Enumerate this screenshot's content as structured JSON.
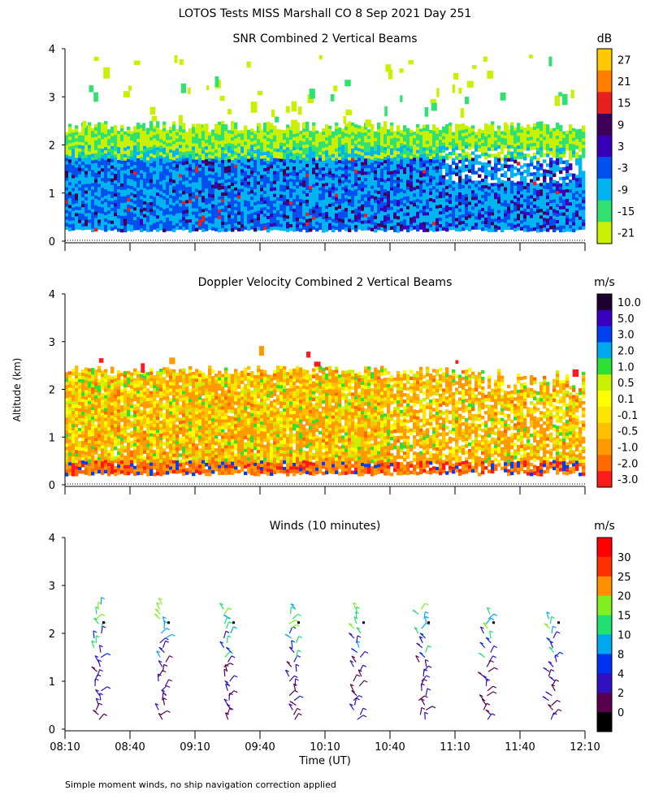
{
  "title": "LOTOS Tests MISS Marshall CO   8 Sep 2021 Day 251",
  "footnote": "Simple moment winds, no ship navigation correction applied",
  "shared_axes": {
    "ylabel": "Altitude (km)",
    "xlabel": "Time (UT)",
    "x_tick_labels": [
      "08:10",
      "08:40",
      "09:10",
      "09:40",
      "10:10",
      "10:40",
      "11:10",
      "11:40",
      "12:10"
    ],
    "y_tick_labels": [
      "0",
      "1",
      "2",
      "3",
      "4"
    ]
  },
  "chart_data": [
    {
      "type": "heatmap",
      "title": "SNR Combined 2 Vertical Beams",
      "xlabel": "Time (UT)",
      "ylabel": "Altitude (km)",
      "xlim": [
        "08:10",
        "12:10"
      ],
      "ylim": [
        0,
        4
      ],
      "data_altitude_range_km": [
        0.25,
        2.5
      ],
      "colorbar": {
        "unit": "dB",
        "levels": [
          -21,
          -15,
          -9,
          -3,
          3,
          9,
          15,
          21,
          27
        ],
        "colors": [
          "#c8f000",
          "#30e070",
          "#00b4f0",
          "#0050f0",
          "#3a00b8",
          "#40005a",
          "#e82020",
          "#ff8000",
          "#ffc800"
        ]
      }
    },
    {
      "type": "heatmap",
      "title": "Doppler Velocity Combined 2 Vertical Beams",
      "xlabel": "Time (UT)",
      "ylabel": "Altitude (km)",
      "xlim": [
        "08:10",
        "12:10"
      ],
      "ylim": [
        0,
        4
      ],
      "data_altitude_range_km": [
        0.25,
        2.5
      ],
      "colorbar": {
        "unit": "m/s",
        "levels": [
          "-3.0",
          "-2.0",
          "-1.0",
          "-0.5",
          "-0.1",
          "0.1",
          "0.5",
          "1.0",
          "2.0",
          "3.0",
          "5.0",
          "10.0"
        ],
        "colors": [
          "#ff1a1a",
          "#ff6a00",
          "#ff9a00",
          "#ffc000",
          "#ffe600",
          "#ffff00",
          "#c8f000",
          "#30e030",
          "#00a8f0",
          "#0040f0",
          "#3a00c0",
          "#200030"
        ]
      }
    },
    {
      "type": "scatter",
      "title": "Winds (10 minutes)",
      "xlabel": "Time (UT)",
      "ylabel": "Altitude (km)",
      "xlim": [
        "08:10",
        "12:10"
      ],
      "ylim": [
        0,
        4
      ],
      "profile_times": [
        "08:25",
        "08:55",
        "09:25",
        "09:55",
        "10:25",
        "10:55",
        "11:25",
        "11:55"
      ],
      "altitude_top_km": [
        2.7,
        2.65,
        2.6,
        2.55,
        2.55,
        2.55,
        2.45,
        2.4
      ],
      "colorbar": {
        "unit": "m/s",
        "levels": [
          0,
          2,
          4,
          8,
          10,
          15,
          20,
          25,
          30
        ],
        "colors": [
          "#000000",
          "#5a0050",
          "#3010c0",
          "#0030f0",
          "#00a8f0",
          "#20e070",
          "#80f020",
          "#ff9000",
          "#ff3000",
          "#ff0000"
        ]
      }
    }
  ]
}
